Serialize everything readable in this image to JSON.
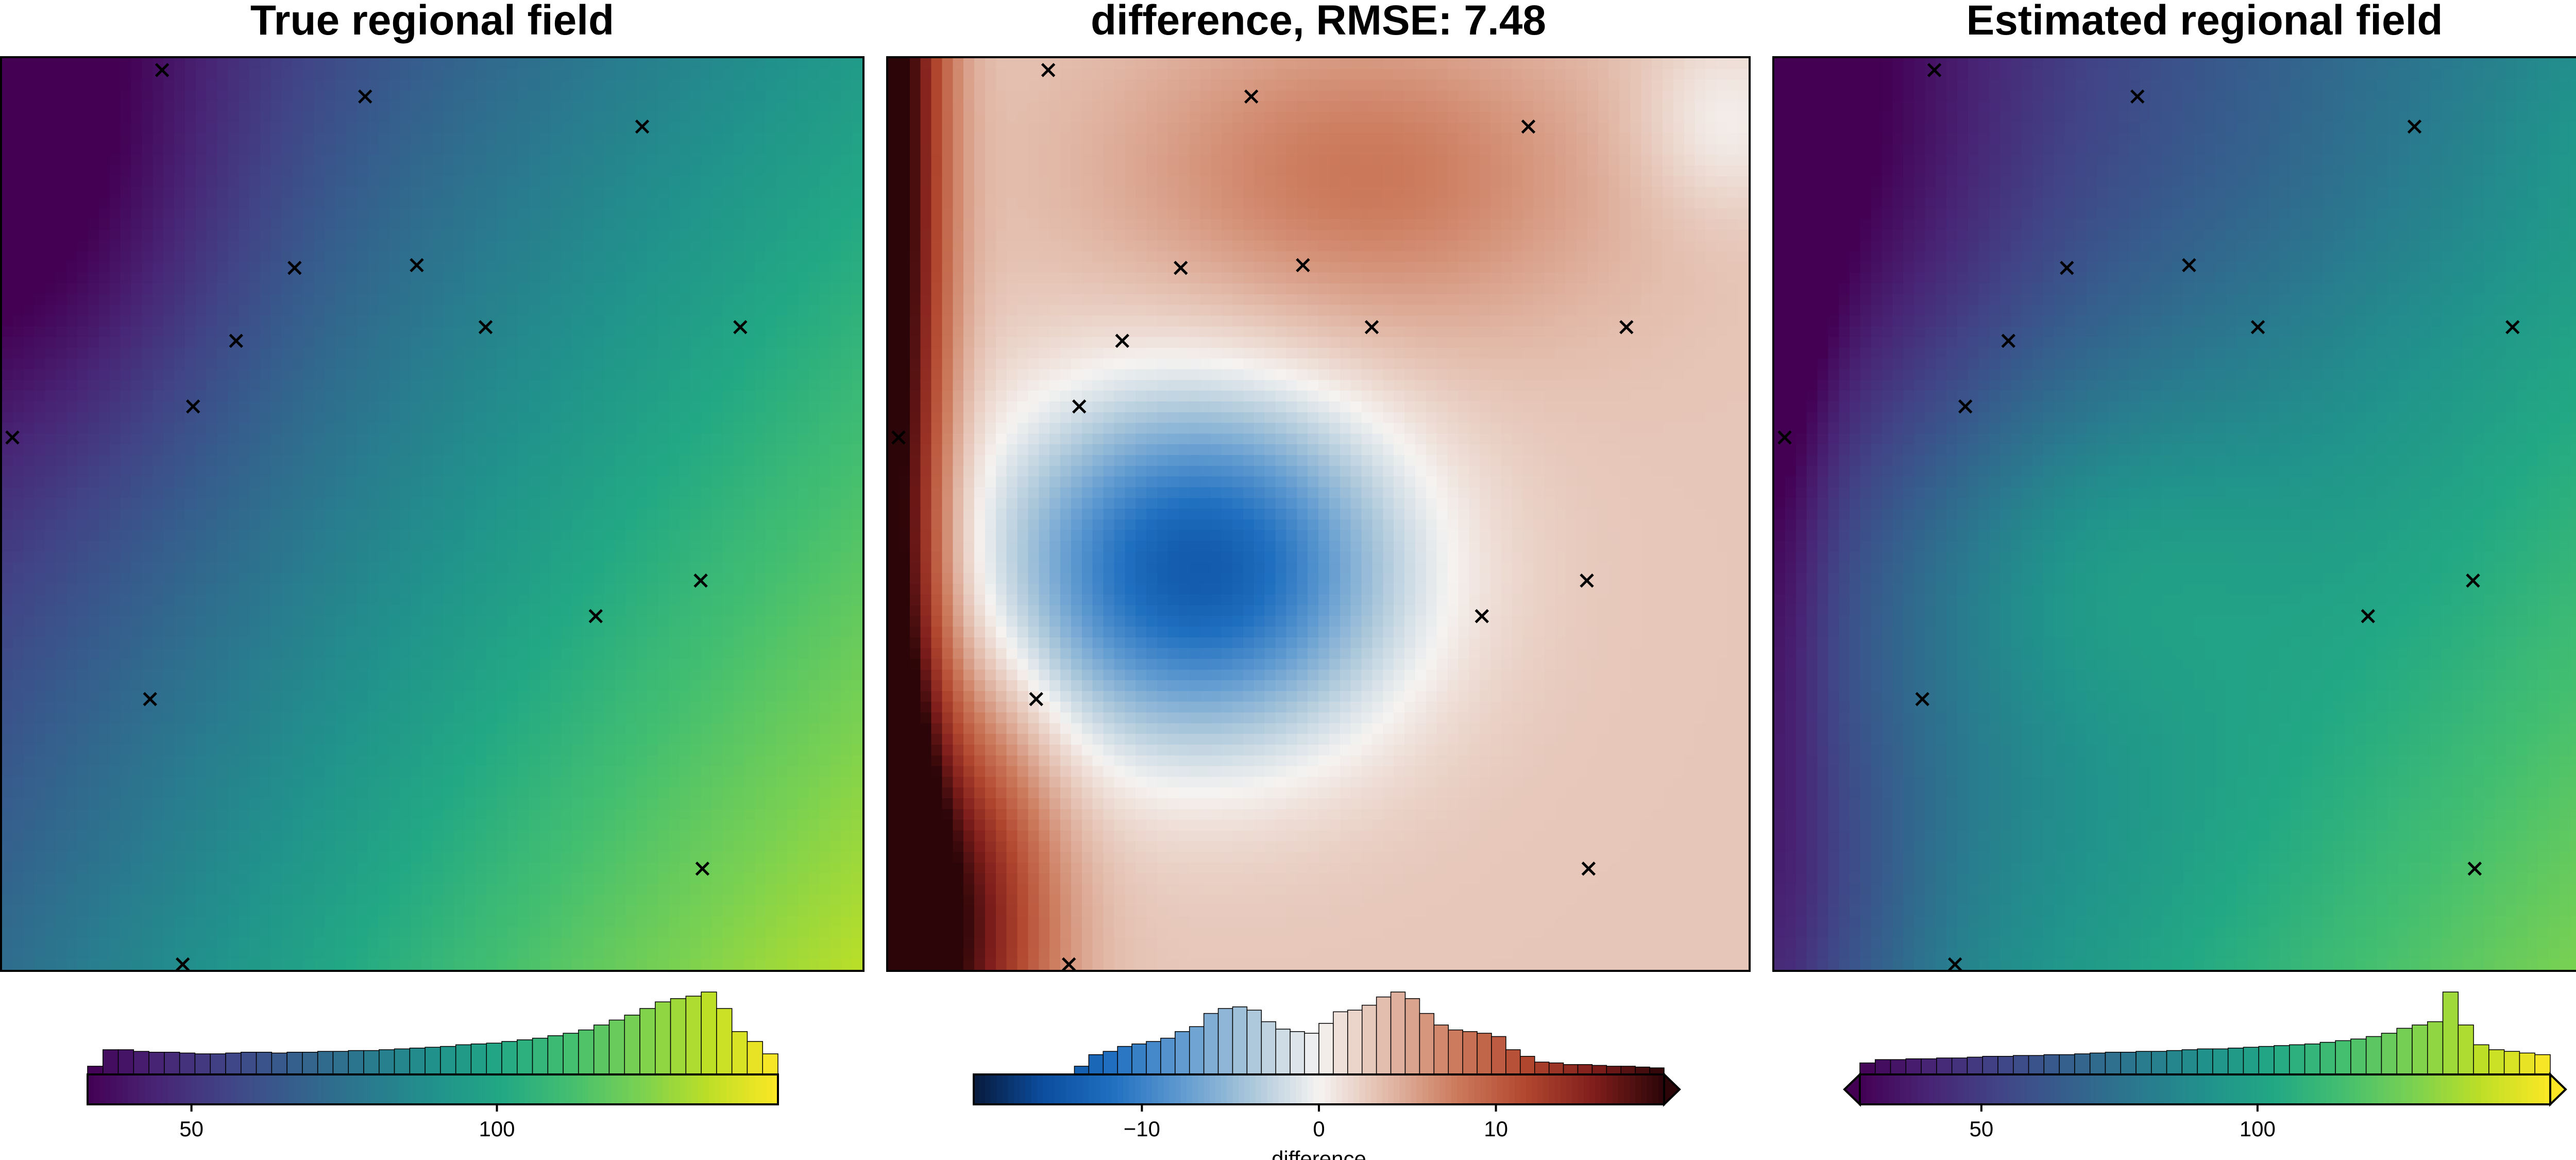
{
  "panels": [
    {
      "title": "True regional field",
      "colormap": "viridis",
      "field": "true",
      "colorbar": {
        "range": [
          33,
          146
        ],
        "ticks": [
          50,
          100
        ],
        "label": "",
        "extend_left": false,
        "extend_right": false,
        "histogram": [
          0.1,
          0.3,
          0.3,
          0.28,
          0.27,
          0.27,
          0.26,
          0.25,
          0.25,
          0.26,
          0.27,
          0.27,
          0.26,
          0.27,
          0.27,
          0.28,
          0.28,
          0.29,
          0.29,
          0.3,
          0.31,
          0.32,
          0.33,
          0.34,
          0.36,
          0.37,
          0.38,
          0.4,
          0.42,
          0.44,
          0.47,
          0.5,
          0.54,
          0.6,
          0.66,
          0.72,
          0.8,
          0.88,
          0.92,
          0.95,
          1.0,
          0.8,
          0.52,
          0.4,
          0.25
        ]
      }
    },
    {
      "title": "difference, RMSE: 7.48",
      "colormap": "diverging-blue-white-red",
      "field": "difference",
      "colorbar": {
        "range": [
          -19.5,
          19.5
        ],
        "ticks": [
          -10,
          0,
          10
        ],
        "label": "difference",
        "extend_left": false,
        "extend_right": true,
        "histogram": [
          0,
          0,
          0,
          0,
          0,
          0,
          0,
          0.1,
          0.24,
          0.28,
          0.34,
          0.37,
          0.4,
          0.44,
          0.52,
          0.58,
          0.74,
          0.8,
          0.82,
          0.78,
          0.64,
          0.55,
          0.52,
          0.5,
          0.62,
          0.76,
          0.78,
          0.84,
          0.94,
          1.0,
          0.92,
          0.74,
          0.6,
          0.54,
          0.52,
          0.5,
          0.46,
          0.3,
          0.22,
          0.15,
          0.14,
          0.12,
          0.12,
          0.11,
          0.1,
          0.1,
          0.09,
          0.08
        ]
      }
    },
    {
      "title": "Estimated regional field",
      "colormap": "viridis",
      "field": "estimated",
      "colorbar": {
        "range": [
          28,
          153
        ],
        "ticks": [
          50,
          100
        ],
        "label": "",
        "extend_left": true,
        "extend_right": true,
        "histogram": [
          0.14,
          0.18,
          0.18,
          0.19,
          0.19,
          0.2,
          0.2,
          0.21,
          0.22,
          0.22,
          0.23,
          0.23,
          0.24,
          0.24,
          0.25,
          0.26,
          0.27,
          0.27,
          0.28,
          0.28,
          0.29,
          0.3,
          0.31,
          0.31,
          0.32,
          0.33,
          0.34,
          0.35,
          0.36,
          0.37,
          0.39,
          0.41,
          0.43,
          0.46,
          0.5,
          0.56,
          0.6,
          0.64,
          1.0,
          0.6,
          0.36,
          0.3,
          0.28,
          0.26,
          0.24
        ]
      }
    }
  ],
  "chart_data": {
    "type": "heatmap",
    "panels": [
      "True regional field",
      "difference, RMSE: 7.48",
      "Estimated regional field"
    ],
    "rmse": 7.48,
    "colorbar_label_difference": "difference",
    "constraint_points_marker": "x",
    "constraint_points": [
      [
        0.186,
        0.987
      ],
      [
        0.422,
        0.958
      ],
      [
        0.744,
        0.925
      ],
      [
        0.34,
        0.77
      ],
      [
        0.482,
        0.773
      ],
      [
        0.562,
        0.705
      ],
      [
        0.858,
        0.705
      ],
      [
        0.272,
        0.69
      ],
      [
        0.222,
        0.618
      ],
      [
        0.012,
        0.584
      ],
      [
        0.812,
        0.427
      ],
      [
        0.69,
        0.388
      ],
      [
        0.172,
        0.297
      ],
      [
        0.814,
        0.111
      ],
      [
        0.21,
        0.006
      ]
    ],
    "colormaps": {
      "viridis": [
        "#440154",
        "#482475",
        "#414487",
        "#355f8d",
        "#2a788e",
        "#21918c",
        "#22a884",
        "#44bf70",
        "#7ad151",
        "#bddf26",
        "#fde725"
      ],
      "diverging": [
        "#071a3a",
        "#0b4d9e",
        "#1f6fc0",
        "#5f9ad0",
        "#a9c6da",
        "#f5f3f1",
        "#e2b9a8",
        "#cc7a5c",
        "#b2472f",
        "#7e1d1b",
        "#2b0508"
      ]
    }
  }
}
